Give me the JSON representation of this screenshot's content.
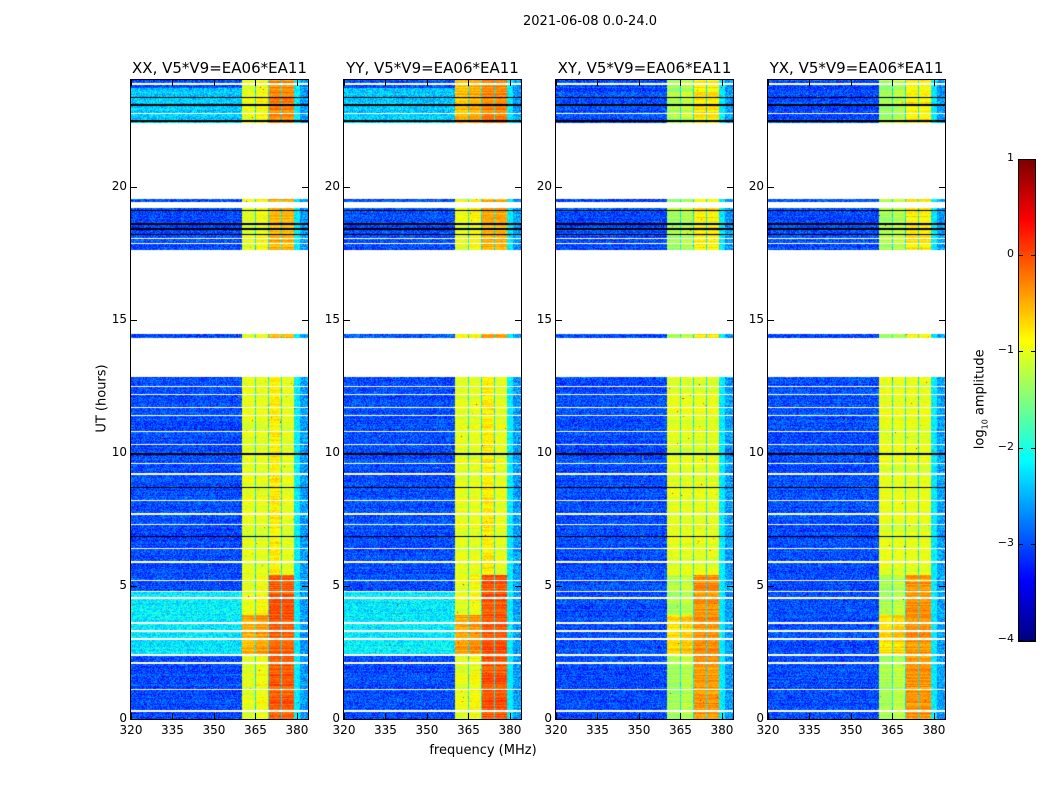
{
  "suptitle": "2021-06-08 0.0-24.0",
  "chart_data": {
    "type": "heatmap",
    "panels": [
      {
        "title": "XX, V5*V9=EA06*EA11",
        "pol": "XX"
      },
      {
        "title": "YY, V5*V9=EA06*EA11",
        "pol": "YY"
      },
      {
        "title": "XY, V5*V9=EA06*EA11",
        "pol": "XY"
      },
      {
        "title": "YX, V5*V9=EA06*EA11",
        "pol": "YX"
      }
    ],
    "xlabel": "frequency (MHz)",
    "ylabel": "UT (hours)",
    "xlim": [
      320,
      384
    ],
    "ylim": [
      0,
      24
    ],
    "xticks": [
      "320",
      "335",
      "350",
      "365",
      "380"
    ],
    "yticks": [
      "0",
      "5",
      "10",
      "15",
      "20"
    ],
    "colorbar": {
      "label_main": "log",
      "label_sub": "10",
      "label_rest": " amplitude",
      "range": [
        -4,
        1
      ],
      "ticks": [
        "−4",
        "−3",
        "−2",
        "−1",
        "0",
        "1"
      ],
      "colormap": "jet"
    },
    "flagged_hours": [
      [
        12.85,
        14.3
      ],
      [
        14.45,
        17.6
      ],
      [
        19.2,
        19.42
      ],
      [
        19.52,
        22.4
      ]
    ],
    "flagged_lines_hours": [
      0.3,
      1.1,
      2.1,
      2.4,
      3.0,
      3.3,
      3.6,
      4.55,
      4.8,
      5.2,
      5.9,
      6.4,
      7.3,
      7.7,
      8.2,
      9.2,
      9.6,
      10.3,
      10.8,
      11.4,
      11.7,
      12.2,
      12.5,
      17.85,
      18.05,
      22.75,
      23.85
    ],
    "dark_lines_hours": [
      6.85,
      8.7,
      9.95,
      18.2,
      18.4,
      18.6,
      19.1,
      22.45,
      23.05,
      23.35
    ],
    "background_log_amp": -3.0,
    "rfi_subbands_mhz": [
      [
        360.3,
        365.0,
        -1.0
      ],
      [
        365.3,
        369.6,
        -0.9
      ],
      [
        369.9,
        374.3,
        -0.5
      ],
      [
        374.6,
        378.8,
        -0.5
      ]
    ]
  }
}
